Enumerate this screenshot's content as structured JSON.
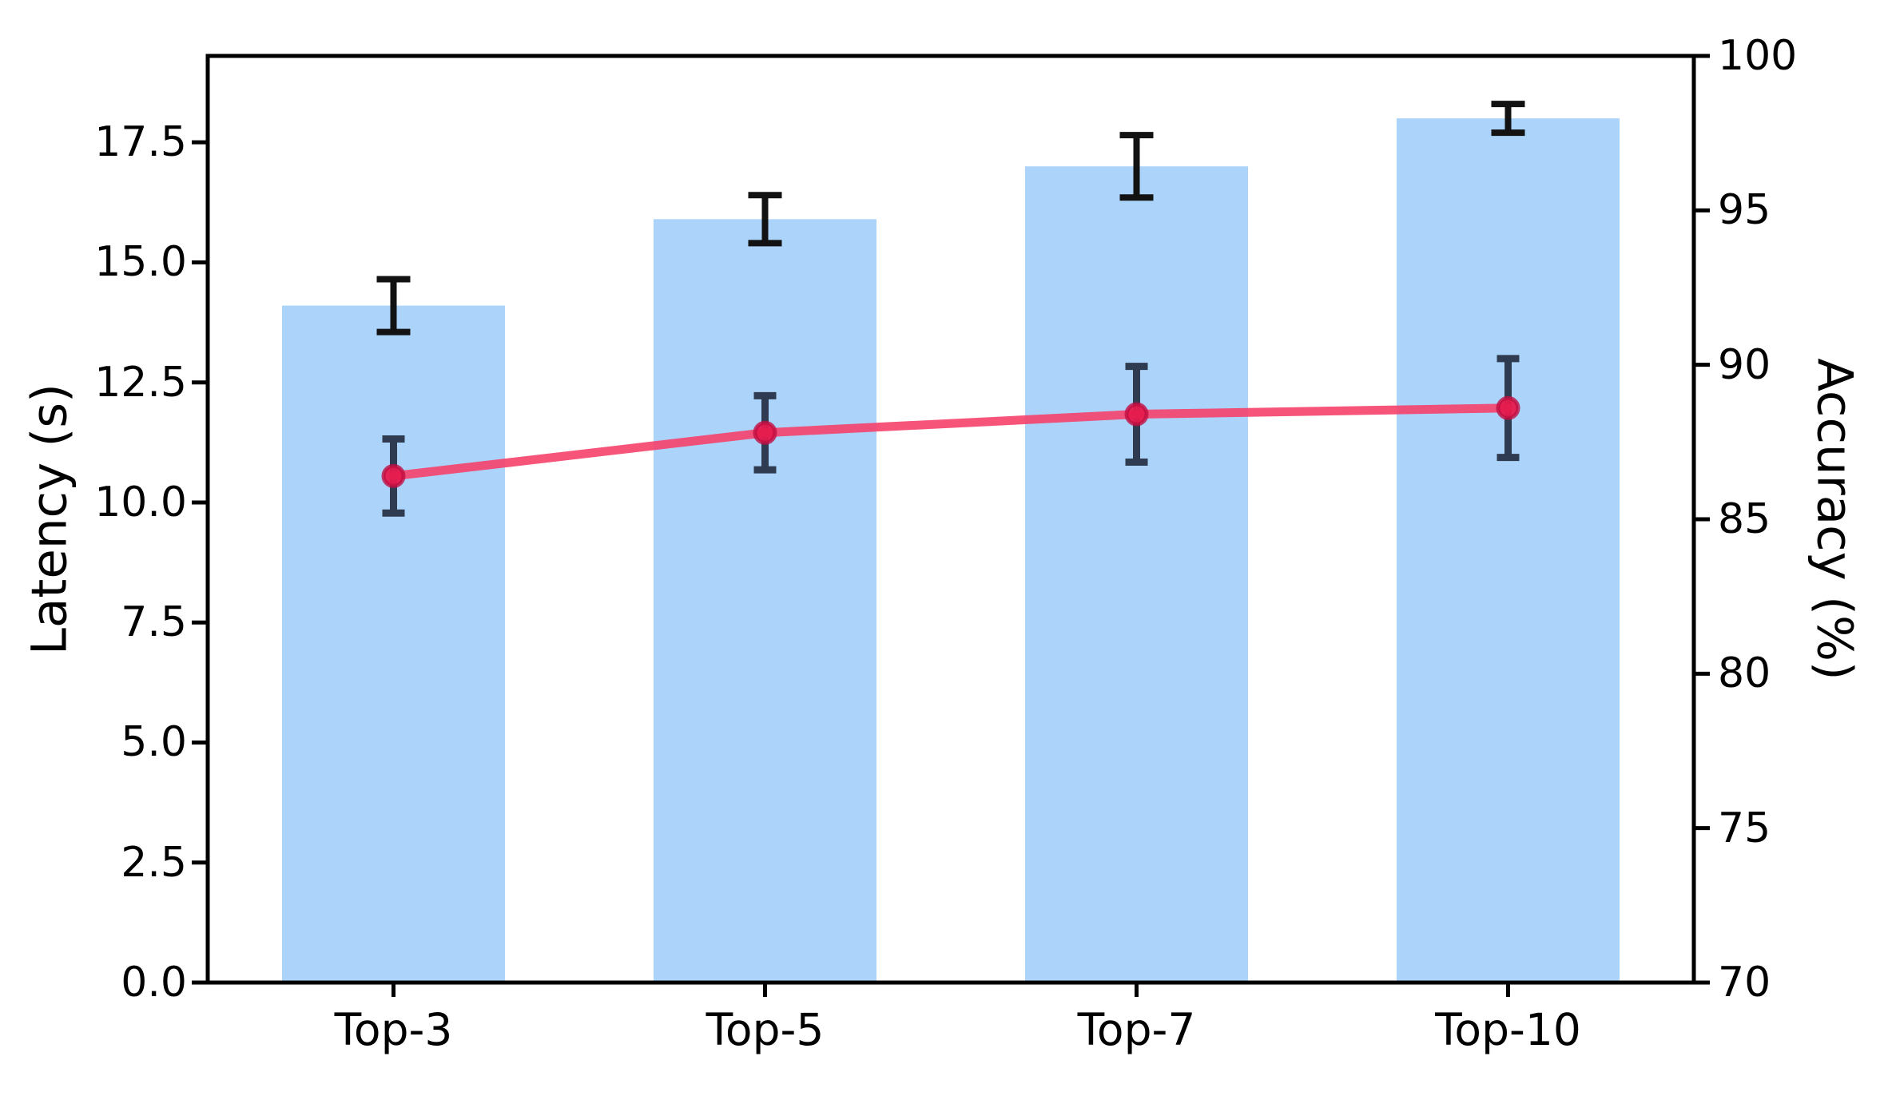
{
  "chart_data": {
    "type": "bar",
    "subtype": "dual-axis-bar-and-line",
    "title": "",
    "grid": false,
    "legend": null,
    "categories": [
      "Top-3",
      "Top-5",
      "Top-7",
      "Top-10"
    ],
    "series": [
      {
        "name": "Latency",
        "type": "bar",
        "axis": "left",
        "values": [
          14.1,
          15.9,
          17.0,
          18.0
        ],
        "errors": [
          0.55,
          0.5,
          0.65,
          0.3
        ],
        "bar_color": "#ACD4FA",
        "error_color": "#121212"
      },
      {
        "name": "Accuracy",
        "type": "line",
        "axis": "right",
        "values": [
          86.4,
          87.8,
          88.4,
          88.6
        ],
        "errors": [
          1.2,
          1.2,
          1.55,
          1.6
        ],
        "line_color": "#F5416A",
        "marker_color": "#E51A4D",
        "marker_edge_color": "#C00F42",
        "error_color": "#2E3B50"
      }
    ],
    "left_axis": {
      "label": "Latency (s)",
      "ticks": [
        0,
        2.5,
        5,
        7.5,
        10,
        12.5,
        15,
        17.5
      ],
      "tick_labels": [
        "0.0",
        "2.5",
        "5.0",
        "7.5",
        "10.0",
        "12.5",
        "15.0",
        "17.5"
      ],
      "min": 0,
      "max": 19.3
    },
    "right_axis": {
      "label": "Accuracy (%)",
      "ticks": [
        70,
        75,
        80,
        85,
        90,
        95,
        100
      ],
      "tick_labels": [
        "70",
        "75",
        "80",
        "85",
        "90",
        "95",
        "100"
      ],
      "min": 70,
      "max": 100
    },
    "x_axis": {
      "tick_labels": [
        "Top-3",
        "Top-5",
        "Top-7",
        "Top-10"
      ]
    },
    "style": {
      "bar_width_ratio": 0.6,
      "axis_color": "#000000",
      "background": "#ffffff"
    }
  }
}
